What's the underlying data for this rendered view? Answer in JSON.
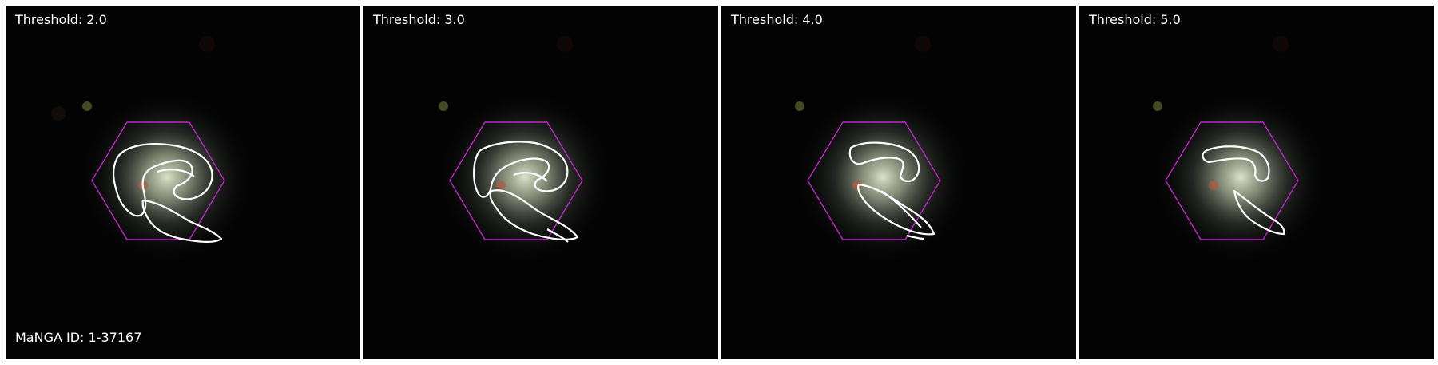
{
  "panels": [
    {
      "threshold_label": "Threshold: 2.0"
    },
    {
      "threshold_label": "Threshold: 3.0"
    },
    {
      "threshold_label": "Threshold: 4.0"
    },
    {
      "threshold_label": "Threshold: 5.0"
    }
  ],
  "galaxy_id_label": "MaNGA ID: 1-37167",
  "colors": {
    "background": "#000000",
    "contour": "#ffffff",
    "ifu_hexagon": "#c026c6",
    "galaxy_core": "#c8cfb0"
  },
  "icons": [
    "galaxy-image",
    "ifu-hexagon-outline",
    "contour-line"
  ]
}
